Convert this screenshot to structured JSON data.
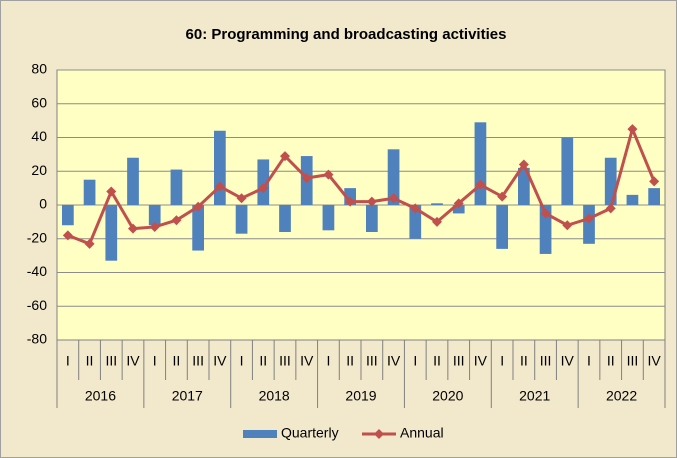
{
  "chart_data": {
    "type": "bar_line",
    "title": "60: Programming and broadcasting activities",
    "categories": [
      "I",
      "II",
      "III",
      "IV",
      "I",
      "II",
      "III",
      "IV",
      "I",
      "II",
      "III",
      "IV",
      "I",
      "II",
      "III",
      "IV",
      "I",
      "II",
      "III",
      "IV",
      "I",
      "II",
      "III",
      "IV",
      "I",
      "II",
      "III",
      "IV"
    ],
    "groups": [
      "2016",
      "2017",
      "2018",
      "2019",
      "2020",
      "2021",
      "2022"
    ],
    "series": [
      {
        "name": "Quarterly",
        "type": "bar",
        "color": "#4f81bd",
        "values": [
          -12,
          15,
          -33,
          28,
          -12,
          21,
          -27,
          44,
          -17,
          27,
          -16,
          29,
          -15,
          10,
          -16,
          33,
          -20,
          1,
          -5,
          49,
          -26,
          22,
          -29,
          40,
          -23,
          28,
          6,
          10
        ]
      },
      {
        "name": "Annual",
        "type": "line",
        "color": "#c0504d",
        "values": [
          -18,
          -23,
          8,
          -14,
          -13,
          -9,
          -1,
          11,
          4,
          10,
          29,
          16,
          18,
          2,
          2,
          4,
          -2,
          -10,
          1,
          12,
          5,
          24,
          -5,
          -12,
          -8,
          -2,
          45,
          14
        ]
      }
    ],
    "ylim": [
      -80,
      80
    ],
    "yticks": [
      -80,
      -60,
      -40,
      -20,
      0,
      20,
      40,
      60,
      80
    ],
    "grid": true,
    "legend": "bottom"
  }
}
